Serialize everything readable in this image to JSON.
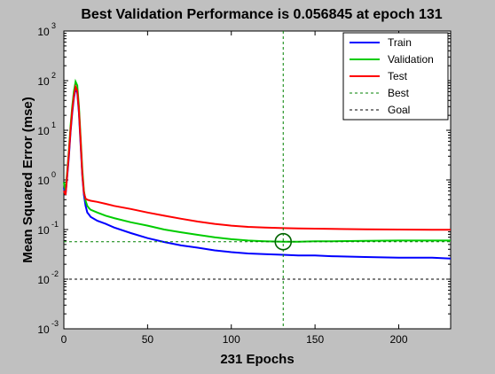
{
  "window": {
    "background": "#c0c0c0"
  },
  "chart_data": {
    "type": "line",
    "title": "Best Validation Performance is 0.056845 at epoch 131",
    "xlabel": "231 Epochs",
    "ylabel": "Mean Squared Error  (mse)",
    "xlim": [
      0,
      231
    ],
    "ylim": [
      0.001,
      1000
    ],
    "yscale": "log",
    "grid": false,
    "legend_position": "top-right",
    "x_ticks": [
      0,
      50,
      100,
      150,
      200
    ],
    "y_ticks": [
      {
        "value": 0.001,
        "base": "10",
        "exp": "-3"
      },
      {
        "value": 0.01,
        "base": "10",
        "exp": "-2"
      },
      {
        "value": 0.1,
        "base": "10",
        "exp": "-1"
      },
      {
        "value": 1,
        "base": "10",
        "exp": "0"
      },
      {
        "value": 10,
        "base": "10",
        "exp": "1"
      },
      {
        "value": 100,
        "base": "10",
        "exp": "2"
      },
      {
        "value": 1000,
        "base": "10",
        "exp": "3"
      }
    ],
    "series": [
      {
        "name": "Train",
        "color": "#0000ff",
        "style": "solid",
        "x": [
          0,
          1,
          2,
          3,
          4,
          5,
          6,
          7,
          8,
          9,
          10,
          11,
          12,
          13,
          14,
          15,
          16,
          20,
          25,
          30,
          40,
          50,
          60,
          70,
          80,
          90,
          100,
          110,
          120,
          131,
          140,
          150,
          160,
          180,
          200,
          220,
          231
        ],
        "y": [
          0.7,
          0.5,
          1.2,
          3,
          9,
          22,
          45,
          68,
          58,
          22,
          5,
          1.2,
          0.5,
          0.3,
          0.22,
          0.2,
          0.18,
          0.15,
          0.13,
          0.11,
          0.085,
          0.067,
          0.056,
          0.048,
          0.043,
          0.038,
          0.035,
          0.033,
          0.032,
          0.031,
          0.03,
          0.03,
          0.029,
          0.028,
          0.027,
          0.027,
          0.026
        ]
      },
      {
        "name": "Validation",
        "color": "#00cc00",
        "style": "solid",
        "x": [
          0,
          1,
          2,
          3,
          4,
          5,
          6,
          7,
          8,
          9,
          10,
          11,
          12,
          13,
          14,
          15,
          16,
          20,
          25,
          30,
          40,
          50,
          60,
          70,
          80,
          90,
          100,
          110,
          120,
          131,
          140,
          150,
          160,
          180,
          200,
          220,
          231
        ],
        "y": [
          0.9,
          0.6,
          1.5,
          4,
          12,
          30,
          60,
          95,
          80,
          30,
          7,
          1.6,
          0.6,
          0.38,
          0.3,
          0.27,
          0.25,
          0.22,
          0.19,
          0.17,
          0.14,
          0.12,
          0.1,
          0.088,
          0.078,
          0.07,
          0.064,
          0.06,
          0.058,
          0.056845,
          0.057,
          0.058,
          0.058,
          0.059,
          0.06,
          0.06,
          0.06
        ]
      },
      {
        "name": "Test",
        "color": "#ff0000",
        "style": "solid",
        "x": [
          0,
          1,
          2,
          3,
          4,
          5,
          6,
          7,
          8,
          9,
          10,
          11,
          12,
          13,
          14,
          15,
          16,
          20,
          25,
          30,
          40,
          50,
          60,
          70,
          80,
          90,
          100,
          110,
          120,
          131,
          140,
          150,
          160,
          180,
          200,
          220,
          231
        ],
        "y": [
          0.6,
          0.5,
          1.3,
          3.5,
          10,
          25,
          50,
          75,
          62,
          25,
          6,
          1.3,
          0.55,
          0.42,
          0.4,
          0.39,
          0.38,
          0.36,
          0.33,
          0.3,
          0.26,
          0.22,
          0.19,
          0.165,
          0.145,
          0.13,
          0.12,
          0.113,
          0.11,
          0.107,
          0.105,
          0.104,
          0.103,
          0.101,
          0.1,
          0.099,
          0.099
        ]
      },
      {
        "name": "Best",
        "color": "#008000",
        "style": "dotted",
        "x": [
          0,
          231
        ],
        "y": [
          0.056845,
          0.056845
        ]
      },
      {
        "name": "Goal",
        "color": "#000000",
        "style": "dotted",
        "x": [
          0,
          231
        ],
        "y": [
          0.01,
          0.01
        ]
      }
    ],
    "best_point": {
      "x": 131,
      "y": 0.056845
    }
  }
}
